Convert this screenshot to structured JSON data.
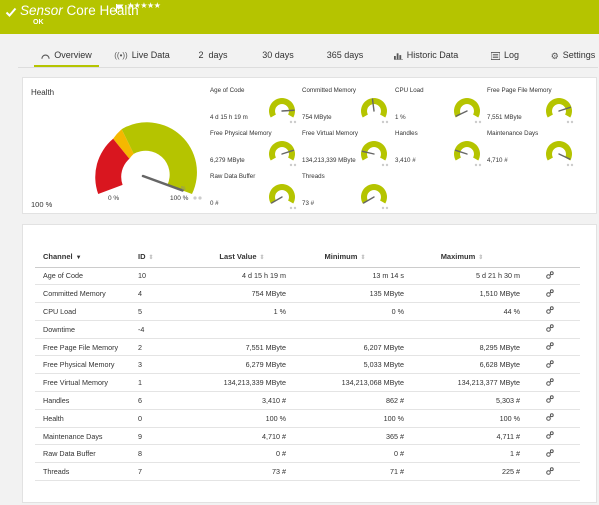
{
  "header": {
    "title_italic": "Sensor",
    "title": "Core Health",
    "stars": "★★★★★",
    "status": "OK"
  },
  "tabs": [
    {
      "label": "Overview",
      "icon": "gauge-icon"
    },
    {
      "label": "Live Data",
      "icon": "live-signal-icon"
    },
    {
      "label": "2  days"
    },
    {
      "label": "30 days"
    },
    {
      "label": "365 days"
    },
    {
      "label": "Historic Data",
      "icon": "bar-chart-icon"
    },
    {
      "label": "Log",
      "icon": "list-icon"
    },
    {
      "label": "Settings",
      "icon": "gear-icon"
    }
  ],
  "health": {
    "title": "Health",
    "value": "100 %",
    "min_label": "0 %",
    "max_label": "100 %",
    "level": 1.0
  },
  "mini_gauges": [
    {
      "name": "Age of Code",
      "value": "4 d 15 h 19 m",
      "level": 0.86
    },
    {
      "name": "Committed Memory",
      "value": "754 MByte",
      "level": 0.47
    },
    {
      "name": "CPU Load",
      "value": "1 %",
      "level": 0.02
    },
    {
      "name": "Free Page File Memory",
      "value": "7,551 MByte",
      "level": 0.8
    },
    {
      "name": "Free Physical Memory",
      "value": "6,279 MByte",
      "level": 0.8
    },
    {
      "name": "Free Virtual Memory",
      "value": "134,213,339 MByte",
      "level": 0.18
    },
    {
      "name": "Handles",
      "value": "3,410 #",
      "level": 0.2
    },
    {
      "name": "Maintenance Days",
      "value": "4,710 #",
      "level": 0.98
    },
    {
      "name": "Raw Data Buffer",
      "value": "0 #",
      "level": 0.0
    },
    {
      "name": "Threads",
      "value": "73 #",
      "level": 0.0
    }
  ],
  "table": {
    "headers": {
      "channel": "Channel",
      "id": "ID",
      "last": "Last Value",
      "min": "Minimum",
      "max": "Maximum"
    },
    "rows": [
      {
        "channel": "Age of Code",
        "id": "10",
        "last": "4 d 15 h 19 m",
        "min": "13 m 14 s",
        "max": "5 d 21 h 30 m"
      },
      {
        "channel": "Committed Memory",
        "id": "4",
        "last": "754 MByte",
        "min": "135 MByte",
        "max": "1,510 MByte"
      },
      {
        "channel": "CPU Load",
        "id": "5",
        "last": "1 %",
        "min": "0 %",
        "max": "44 %"
      },
      {
        "channel": "Downtime",
        "id": "-4",
        "last": "",
        "min": "",
        "max": ""
      },
      {
        "channel": "Free Page File Memory",
        "id": "2",
        "last": "7,551 MByte",
        "min": "6,207 MByte",
        "max": "8,295 MByte"
      },
      {
        "channel": "Free Physical Memory",
        "id": "3",
        "last": "6,279 MByte",
        "min": "5,033 MByte",
        "max": "6,628 MByte"
      },
      {
        "channel": "Free Virtual Memory",
        "id": "1",
        "last": "134,213,339 MByte",
        "min": "134,213,068 MByte",
        "max": "134,213,377 MByte"
      },
      {
        "channel": "Handles",
        "id": "6",
        "last": "3,410 #",
        "min": "862 #",
        "max": "5,303 #"
      },
      {
        "channel": "Health",
        "id": "0",
        "last": "100 %",
        "min": "100 %",
        "max": "100 %"
      },
      {
        "channel": "Maintenance Days",
        "id": "9",
        "last": "4,710 #",
        "min": "365 #",
        "max": "4,711 #"
      },
      {
        "channel": "Raw Data Buffer",
        "id": "8",
        "last": "0 #",
        "min": "0 #",
        "max": "1 #"
      },
      {
        "channel": "Threads",
        "id": "7",
        "last": "73 #",
        "min": "71 #",
        "max": "225 #"
      }
    ]
  },
  "colors": {
    "accent": "#b5c400",
    "warn": "#f5b800",
    "error": "#d9161f",
    "needle": "#666666"
  }
}
